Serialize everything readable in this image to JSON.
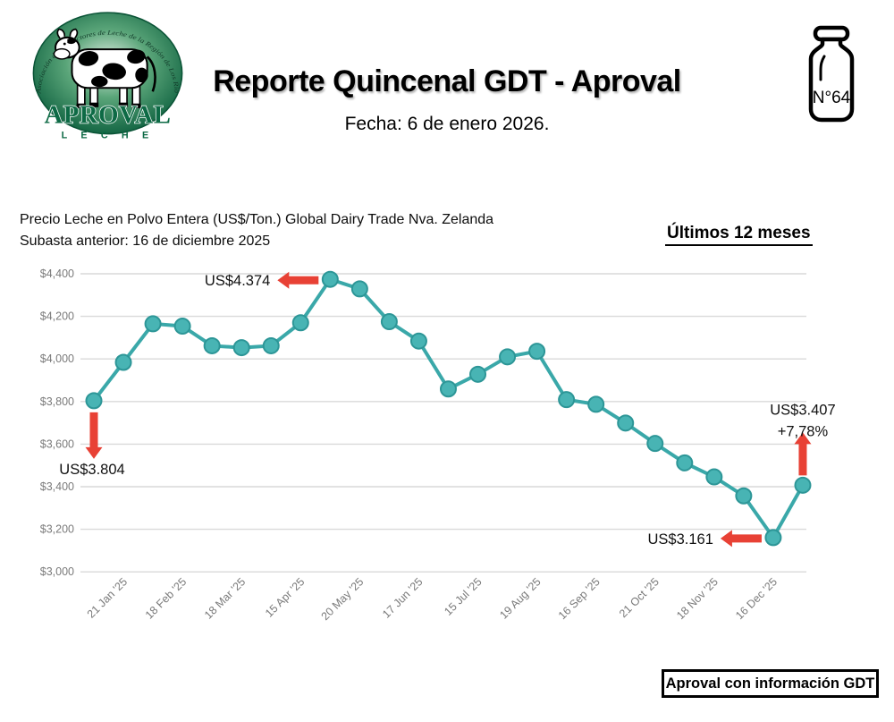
{
  "header": {
    "title": "Reporte Quincenal GDT - Aproval",
    "date_line": "Fecha: 6 de enero 2026.",
    "issue_number": "N°64",
    "logo": {
      "ring_text": "Asociación de Productores de Leche de la Región de Los Ríos",
      "name": "APROVAL",
      "sub": "L E C H E"
    }
  },
  "chart_header": {
    "title_line1": "Precio Leche en Polvo Entera (US$/Ton.) Global Dairy Trade Nva. Zelanda",
    "title_line2": "Subasta anterior: 16 de diciembre 2025",
    "period_label": "Últimos 12 meses"
  },
  "footer": {
    "source_label": "Aproval con información GDT"
  },
  "colors": {
    "line": "#3aa8a9",
    "marker_fill": "#48b4b4",
    "marker_stroke": "#2d9697",
    "arrow": "#e84135",
    "grid": "#d9d9d9",
    "axis_text": "#7a7a7a",
    "annotation_text": "#111111",
    "logo_green": "#0d6a45"
  },
  "chart_data": {
    "type": "line",
    "title": "Precio Leche en Polvo Entera (US$/Ton.) Global Dairy Trade Nva. Zelanda",
    "subtitle": "Subasta anterior: 16 de diciembre 2025",
    "period": "Últimos 12 meses",
    "xlabel": "",
    "ylabel": "",
    "ylim": [
      3000,
      4400
    ],
    "ytick_step": 200,
    "ytick_prefix": "$",
    "grid": true,
    "legend": "none",
    "values": [
      3804,
      3984,
      4165,
      4154,
      4062,
      4053,
      4062,
      4170,
      4374,
      4329,
      4175,
      4084,
      3859,
      3928,
      4010,
      4036,
      3809,
      3787,
      3699,
      3603,
      3512,
      3446,
      3357,
      3161,
      3407
    ],
    "xtick_labels": [
      {
        "index": 1,
        "label": "21 Jan '25"
      },
      {
        "index": 3,
        "label": "18 Feb '25"
      },
      {
        "index": 5,
        "label": "18 Mar '25"
      },
      {
        "index": 7,
        "label": "15 Apr '25"
      },
      {
        "index": 9,
        "label": "20 May '25"
      },
      {
        "index": 11,
        "label": "17 Jun '25"
      },
      {
        "index": 13,
        "label": "15 Jul '25"
      },
      {
        "index": 15,
        "label": "19 Aug '25"
      },
      {
        "index": 17,
        "label": "16 Sep '25"
      },
      {
        "index": 19,
        "label": "21 Oct '25"
      },
      {
        "index": 21,
        "label": "18 Nov '25"
      },
      {
        "index": 23,
        "label": "16 Dec '25"
      }
    ],
    "annotations": [
      {
        "point_index": 0,
        "lines": [
          "US$3.804"
        ],
        "arrow_dir": "down"
      },
      {
        "point_index": 8,
        "lines": [
          "US$4.374"
        ],
        "arrow_dir": "left"
      },
      {
        "point_index": 23,
        "lines": [
          "US$3.161"
        ],
        "arrow_dir": "left"
      },
      {
        "point_index": 24,
        "lines": [
          "US$3.407",
          "+7,78%"
        ],
        "arrow_dir": "up"
      }
    ]
  }
}
